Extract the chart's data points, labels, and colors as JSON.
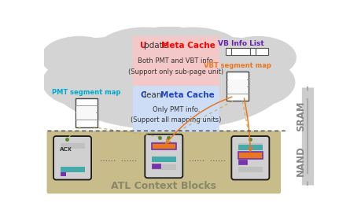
{
  "sram_label": "SRAM",
  "nand_label": "NAND",
  "atl_label": "ATL Context Blocks",
  "update_cache_title_u": "U",
  "update_cache_title_rest": "pdate ",
  "update_cache_title_bold": "Meta Cache",
  "update_cache_body": "Both PMT and VBT info.\n(Support only sub-page unit)",
  "clean_cache_title_c": "C",
  "clean_cache_title_rest": "lean ",
  "clean_cache_title_bold": "Meta Cache",
  "clean_cache_body": "Only PMT info.\n(Support all mapping units)",
  "pmt_label": "PMT segment map",
  "vbt_label": "VBT segment map",
  "vb_label": "VB Info List",
  "update_cache_color": "#f5c8c8",
  "clean_cache_color": "#ccddf5",
  "nand_bg": "#c8bc8a",
  "cloud_color": "#d4d4d4",
  "arrow_shaft_color": "#cccccc",
  "sram_nand_label_color": "#888888",
  "dots": "......  ......",
  "acx_label": "ACX",
  "connector_color": "#c8b060",
  "green_dot_color": "#558822",
  "orange_color": "#e87820",
  "purple_color": "#7733aa",
  "teal_color": "#44aaaa",
  "orange_arrow_color": "#e87820"
}
